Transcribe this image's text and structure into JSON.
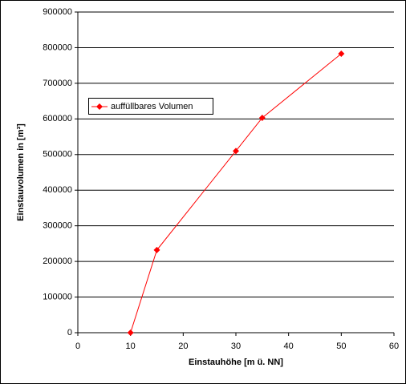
{
  "chart_data": {
    "type": "line",
    "x_label": "Einstauhöhe [m ü. NN]",
    "y_label": "Einstauvolumen in [m³]",
    "x": [
      10,
      15,
      30,
      35,
      50
    ],
    "series": [
      {
        "name": "auffüllbares Volumen",
        "color": "#ff0000",
        "values": [
          0,
          232000,
          510000,
          603000,
          783000
        ]
      }
    ],
    "xlim": [
      0,
      60
    ],
    "xticks": [
      0,
      10,
      20,
      30,
      40,
      50,
      60
    ],
    "ylim": [
      0,
      900000
    ],
    "yticks": [
      0,
      100000,
      200000,
      300000,
      400000,
      500000,
      600000,
      700000,
      800000,
      900000
    ],
    "grid": true
  }
}
